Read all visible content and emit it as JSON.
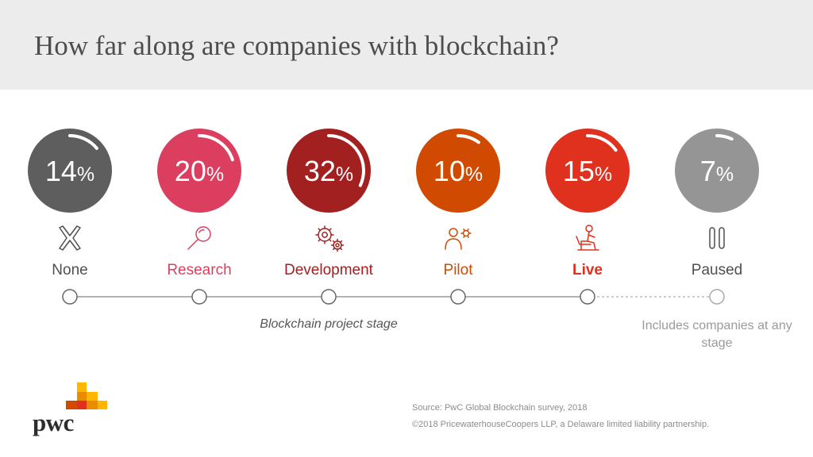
{
  "title": "How far along are companies with blockchain?",
  "chart_data": {
    "type": "bubble-stages",
    "title": "How far along are companies with blockchain?",
    "categories": [
      "None",
      "Research",
      "Development",
      "Pilot",
      "Live",
      "Paused"
    ],
    "values": [
      14,
      20,
      32,
      10,
      15,
      7
    ],
    "value_labels": [
      "14",
      "20",
      "32",
      "10",
      "15",
      "7"
    ],
    "unit": "%",
    "colors": [
      "#5e5e5e",
      "#db3e5f",
      "#a32020",
      "#d04a02",
      "#e0301e",
      "#959595"
    ],
    "label_colors": [
      "#4f4f4f",
      "#db3e5f",
      "#a32020",
      "#d04a02",
      "#e0301e",
      "#4f4f4f"
    ],
    "label_bold": [
      false,
      false,
      false,
      false,
      true,
      false
    ],
    "icons": [
      "x-icon",
      "magnifier-icon",
      "gears-icon",
      "person-gear-icon",
      "person-laptop-icon",
      "pause-icon"
    ],
    "axis_label": "Blockchain project stage",
    "dashed_last_segment": true
  },
  "note": "Includes companies at any stage",
  "footer": {
    "source": "Source: PwC Global Blockchain survey, 2018",
    "copyright": "©2018 PricewaterhouseCoopers LLP, a Delaware limited liability partnership."
  },
  "logo": {
    "text": "pwc",
    "colors": [
      "#ffb600",
      "#eb8c00",
      "#d04a02",
      "#e0301e"
    ]
  }
}
